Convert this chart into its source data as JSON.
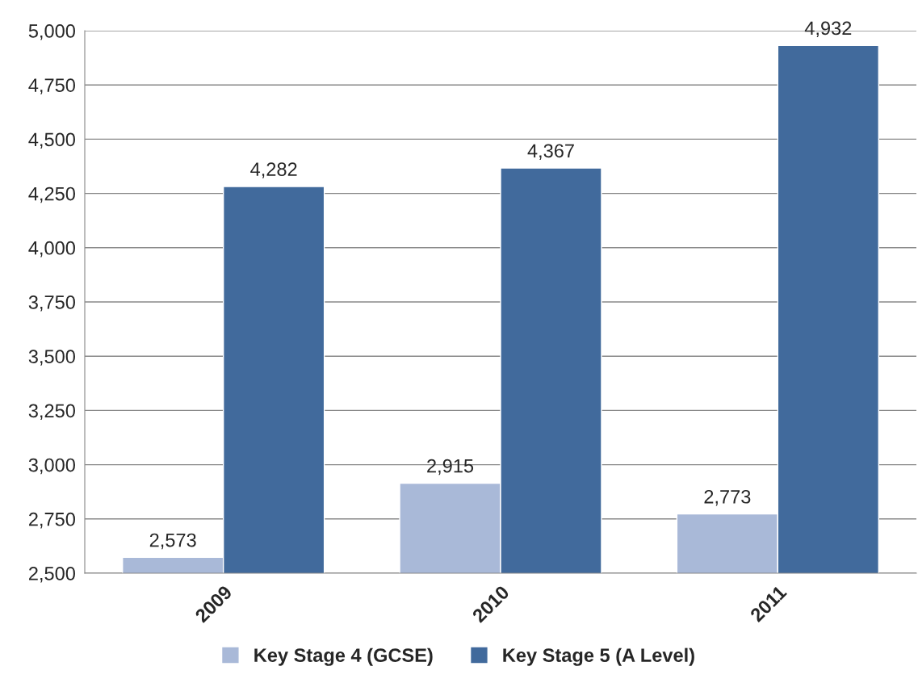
{
  "chart_data": {
    "type": "bar",
    "categories": [
      "2009",
      "2010",
      "2011"
    ],
    "series": [
      {
        "name": "Key Stage 4 (GCSE)",
        "color": "#a9b9d8",
        "values": [
          2573,
          2915,
          2773
        ],
        "value_labels": [
          "2,573",
          "2,915",
          "2,773"
        ]
      },
      {
        "name": "Key Stage 5 (A Level)",
        "color": "#416a9c",
        "values": [
          4282,
          4367,
          4932
        ],
        "value_labels": [
          "4,282",
          "4,367",
          "4,932"
        ]
      }
    ],
    "ylim": [
      2500,
      5000
    ],
    "yticks": [
      {
        "value": 2500,
        "label": "2,500"
      },
      {
        "value": 2750,
        "label": "2,750"
      },
      {
        "value": 3000,
        "label": "3,000"
      },
      {
        "value": 3250,
        "label": "3,250"
      },
      {
        "value": 3500,
        "label": "3,500"
      },
      {
        "value": 3750,
        "label": "3,750"
      },
      {
        "value": 4000,
        "label": "4,000"
      },
      {
        "value": 4250,
        "label": "4,250"
      },
      {
        "value": 4500,
        "label": "4,500"
      },
      {
        "value": 4750,
        "label": "4,750"
      },
      {
        "value": 5000,
        "label": "5,000"
      }
    ],
    "grid": "y",
    "legend": "bottom"
  }
}
